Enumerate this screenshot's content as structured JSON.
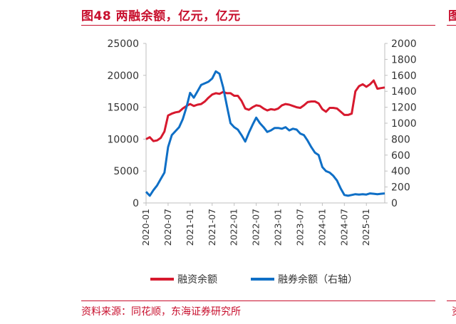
{
  "header": {
    "title": "图48 两融余额，亿元，亿元",
    "edge_char": "图"
  },
  "footer": {
    "source": "资料来源：同花顺，东海证券研究所",
    "edge_char": "资"
  },
  "colors": {
    "accent": "#c8102e",
    "series_margin": "#d7192e",
    "series_short": "#0f6fc6",
    "axis": "#bfbfbf"
  },
  "chart_data": {
    "type": "line",
    "title": "",
    "xlabel": "",
    "ylabel": "",
    "x_tick_labels": [
      "2020-01",
      "2020-07",
      "2021-01",
      "2021-07",
      "2022-01",
      "2022-07",
      "2023-01",
      "2023-07",
      "2024-01",
      "2024-07",
      "2025-01"
    ],
    "y_left": {
      "ticks": [
        0,
        5000,
        10000,
        15000,
        20000,
        25000
      ],
      "lim": [
        0,
        25000
      ]
    },
    "y_right": {
      "ticks": [
        0,
        200,
        400,
        600,
        800,
        1000,
        1200,
        1400,
        1600,
        1800,
        2000
      ],
      "lim": [
        0,
        2000
      ]
    },
    "x_range": [
      "2020-01",
      "2025-06"
    ],
    "grid": false,
    "legend_position": "bottom",
    "series": [
      {
        "name": "融资余额",
        "axis": "left",
        "points": [
          [
            "2020-01",
            10000
          ],
          [
            "2020-02",
            10300
          ],
          [
            "2020-03",
            9700
          ],
          [
            "2020-04",
            9800
          ],
          [
            "2020-05",
            10200
          ],
          [
            "2020-06",
            11200
          ],
          [
            "2020-07",
            13700
          ],
          [
            "2020-08",
            14000
          ],
          [
            "2020-09",
            14200
          ],
          [
            "2020-10",
            14300
          ],
          [
            "2020-11",
            14800
          ],
          [
            "2020-12",
            15200
          ],
          [
            "2021-01",
            15500
          ],
          [
            "2021-02",
            15200
          ],
          [
            "2021-03",
            15400
          ],
          [
            "2021-04",
            15500
          ],
          [
            "2021-05",
            15900
          ],
          [
            "2021-06",
            16500
          ],
          [
            "2021-07",
            17000
          ],
          [
            "2021-08",
            17200
          ],
          [
            "2021-09",
            17100
          ],
          [
            "2021-10",
            17400
          ],
          [
            "2021-11",
            17200
          ],
          [
            "2021-12",
            17200
          ],
          [
            "2022-01",
            16800
          ],
          [
            "2022-02",
            16800
          ],
          [
            "2022-03",
            16000
          ],
          [
            "2022-04",
            14800
          ],
          [
            "2022-05",
            14600
          ],
          [
            "2022-06",
            15000
          ],
          [
            "2022-07",
            15300
          ],
          [
            "2022-08",
            15200
          ],
          [
            "2022-09",
            14800
          ],
          [
            "2022-10",
            14500
          ],
          [
            "2022-11",
            14700
          ],
          [
            "2022-12",
            14600
          ],
          [
            "2023-01",
            14800
          ],
          [
            "2023-02",
            15300
          ],
          [
            "2023-03",
            15500
          ],
          [
            "2023-04",
            15400
          ],
          [
            "2023-05",
            15200
          ],
          [
            "2023-06",
            15000
          ],
          [
            "2023-07",
            14900
          ],
          [
            "2023-08",
            15300
          ],
          [
            "2023-09",
            15800
          ],
          [
            "2023-10",
            15900
          ],
          [
            "2023-11",
            15900
          ],
          [
            "2023-12",
            15600
          ],
          [
            "2024-01",
            14700
          ],
          [
            "2024-02",
            14300
          ],
          [
            "2024-03",
            14900
          ],
          [
            "2024-04",
            14900
          ],
          [
            "2024-05",
            14800
          ],
          [
            "2024-06",
            14300
          ],
          [
            "2024-07",
            13800
          ],
          [
            "2024-08",
            13800
          ],
          [
            "2024-09",
            14000
          ],
          [
            "2024-10",
            17500
          ],
          [
            "2024-11",
            18300
          ],
          [
            "2024-12",
            18600
          ],
          [
            "2025-01",
            18200
          ],
          [
            "2025-02",
            18600
          ],
          [
            "2025-03",
            19200
          ],
          [
            "2025-04",
            17900
          ],
          [
            "2025-05",
            18000
          ],
          [
            "2025-06",
            18100
          ]
        ]
      },
      {
        "name": "融券余额（右轴）",
        "axis": "right",
        "points": [
          [
            "2020-01",
            140
          ],
          [
            "2020-02",
            90
          ],
          [
            "2020-03",
            160
          ],
          [
            "2020-04",
            220
          ],
          [
            "2020-05",
            300
          ],
          [
            "2020-06",
            380
          ],
          [
            "2020-07",
            700
          ],
          [
            "2020-08",
            850
          ],
          [
            "2020-09",
            900
          ],
          [
            "2020-10",
            950
          ],
          [
            "2020-11",
            1050
          ],
          [
            "2020-12",
            1200
          ],
          [
            "2021-01",
            1380
          ],
          [
            "2021-02",
            1320
          ],
          [
            "2021-03",
            1400
          ],
          [
            "2021-04",
            1480
          ],
          [
            "2021-05",
            1500
          ],
          [
            "2021-06",
            1520
          ],
          [
            "2021-07",
            1560
          ],
          [
            "2021-08",
            1650
          ],
          [
            "2021-09",
            1620
          ],
          [
            "2021-10",
            1450
          ],
          [
            "2021-11",
            1220
          ],
          [
            "2021-12",
            1000
          ],
          [
            "2022-01",
            950
          ],
          [
            "2022-02",
            920
          ],
          [
            "2022-03",
            850
          ],
          [
            "2022-04",
            770
          ],
          [
            "2022-05",
            880
          ],
          [
            "2022-06",
            980
          ],
          [
            "2022-07",
            1070
          ],
          [
            "2022-08",
            1000
          ],
          [
            "2022-09",
            950
          ],
          [
            "2022-10",
            890
          ],
          [
            "2022-11",
            910
          ],
          [
            "2022-12",
            940
          ],
          [
            "2023-01",
            940
          ],
          [
            "2023-02",
            930
          ],
          [
            "2023-03",
            950
          ],
          [
            "2023-04",
            910
          ],
          [
            "2023-05",
            930
          ],
          [
            "2023-06",
            920
          ],
          [
            "2023-07",
            870
          ],
          [
            "2023-08",
            850
          ],
          [
            "2023-09",
            780
          ],
          [
            "2023-10",
            700
          ],
          [
            "2023-11",
            630
          ],
          [
            "2023-12",
            600
          ],
          [
            "2024-01",
            450
          ],
          [
            "2024-02",
            400
          ],
          [
            "2024-03",
            380
          ],
          [
            "2024-04",
            340
          ],
          [
            "2024-05",
            280
          ],
          [
            "2024-06",
            180
          ],
          [
            "2024-07",
            100
          ],
          [
            "2024-08",
            90
          ],
          [
            "2024-09",
            100
          ],
          [
            "2024-10",
            110
          ],
          [
            "2024-11",
            105
          ],
          [
            "2024-12",
            110
          ],
          [
            "2025-01",
            105
          ],
          [
            "2025-02",
            120
          ],
          [
            "2025-03",
            115
          ],
          [
            "2025-04",
            110
          ],
          [
            "2025-05",
            115
          ],
          [
            "2025-06",
            120
          ]
        ]
      }
    ]
  }
}
